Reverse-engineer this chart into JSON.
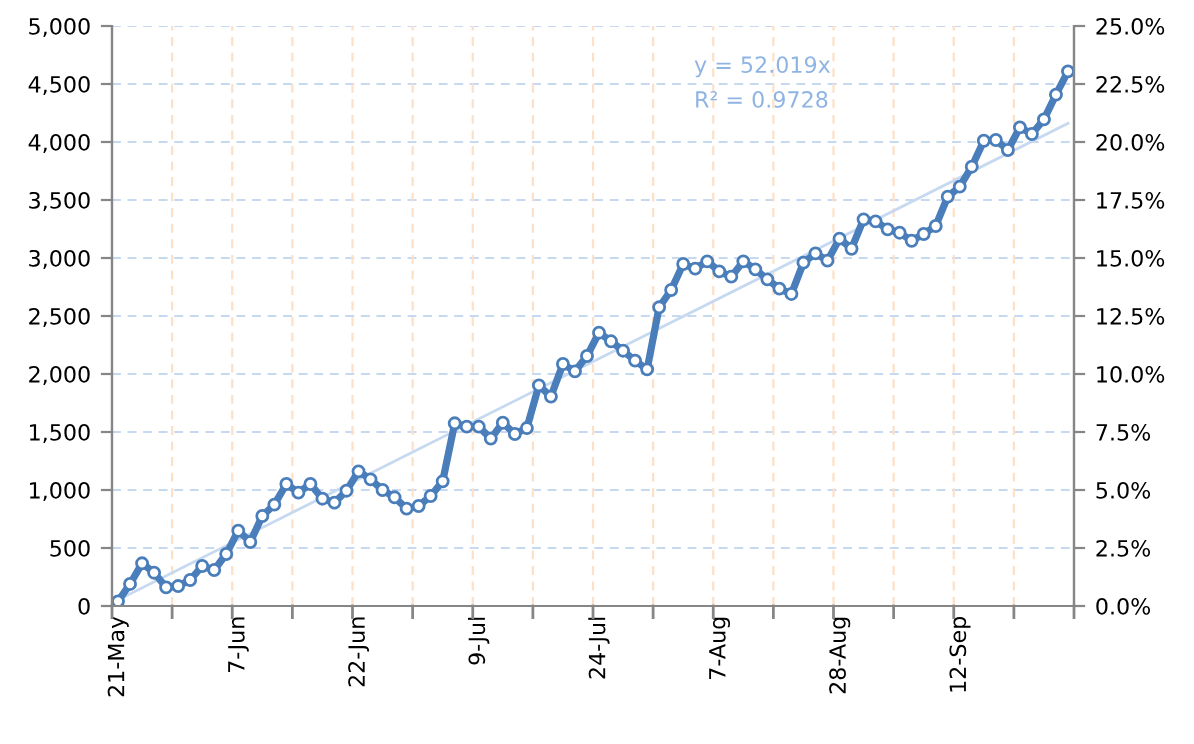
{
  "chart_data": {
    "type": "line",
    "categories": [
      "21-May",
      null,
      null,
      null,
      null,
      null,
      null,
      null,
      null,
      null,
      "7-Jun",
      null,
      null,
      null,
      null,
      null,
      null,
      null,
      null,
      null,
      "22-Jun",
      null,
      null,
      null,
      null,
      null,
      null,
      null,
      null,
      null,
      "9-Jul",
      null,
      null,
      null,
      null,
      null,
      null,
      null,
      null,
      null,
      "24-Jul",
      null,
      null,
      null,
      null,
      null,
      null,
      null,
      null,
      null,
      "7-Aug",
      null,
      null,
      null,
      null,
      null,
      null,
      null,
      null,
      null,
      "28-Aug",
      null,
      null,
      null,
      null,
      null,
      null,
      null,
      null,
      null,
      "12-Sep",
      null,
      null,
      null,
      null,
      null,
      null,
      null,
      null,
      null
    ],
    "series": [
      {
        "color": "#4a7ebb",
        "marker": "circle",
        "values": [
          40,
          190,
          368,
          287,
          161,
          172,
          224,
          345,
          310,
          448,
          649,
          552,
          776,
          874,
          1052,
          977,
          1052,
          925,
          891,
          994,
          1161,
          1092,
          1000,
          937,
          839,
          862,
          948,
          1075,
          1575,
          1546,
          1546,
          1443,
          1580,
          1483,
          1534,
          1902,
          1805,
          2086,
          2023,
          2155,
          2356,
          2282,
          2201,
          2115,
          2040,
          2575,
          2724,
          2948,
          2908,
          2971,
          2885,
          2839,
          2971,
          2902,
          2816,
          2736,
          2690,
          2960,
          3040,
          2977,
          3167,
          3080,
          3333,
          3316,
          3247,
          3218,
          3149,
          3207,
          3276,
          3529,
          3615,
          3787,
          4011,
          4017,
          3931,
          4126,
          4069,
          4195,
          4408,
          4609
        ]
      },
      {
        "color": "#c6d9f1",
        "marker": "none",
        "values": [
          52,
          null,
          null,
          null,
          null,
          null,
          null,
          null,
          null,
          null,
          null,
          null,
          null,
          null,
          null,
          null,
          null,
          null,
          null,
          null,
          null,
          null,
          null,
          null,
          null,
          null,
          null,
          null,
          null,
          null,
          null,
          null,
          null,
          null,
          null,
          null,
          null,
          null,
          null,
          null,
          null,
          null,
          null,
          null,
          null,
          null,
          null,
          null,
          null,
          null,
          null,
          null,
          null,
          null,
          null,
          null,
          null,
          null,
          null,
          null,
          null,
          null,
          null,
          null,
          null,
          null,
          null,
          null,
          null,
          null,
          null,
          null,
          null,
          null,
          null,
          null,
          null,
          null,
          null,
          4161
        ]
      }
    ],
    "ylim": [
      0,
      5000
    ],
    "yticks": [
      0,
      500,
      {
        "value": 1000,
        "label": "1,000"
      },
      {
        "value": 1500,
        "label": "1,500"
      },
      {
        "value": 2000,
        "label": "2,000"
      },
      {
        "value": 2500,
        "label": "2,500"
      },
      {
        "value": 3000,
        "label": "3,000"
      },
      {
        "value": 3500,
        "label": "3,500"
      },
      {
        "value": 4000,
        "label": "4,000"
      },
      {
        "value": 4500,
        "label": "4,500"
      },
      {
        "value": 5000,
        "label": "5,000"
      }
    ],
    "y2lim": [
      0,
      25
    ],
    "y2ticks": [
      {
        "value": 0,
        "label": "0.0%"
      },
      {
        "value": 2.5,
        "label": "2.5%"
      },
      {
        "value": 5,
        "label": "5.0%"
      },
      {
        "value": 7.5,
        "label": "7.5%"
      },
      {
        "value": 10,
        "label": "10.0%"
      },
      {
        "value": 12.5,
        "label": "12.5%"
      },
      {
        "value": 15,
        "label": "15.0%"
      },
      {
        "value": 17.5,
        "label": "17.5%"
      },
      {
        "value": 20,
        "label": "20.0%"
      },
      {
        "value": 22.5,
        "label": "22.5%"
      },
      {
        "value": 25,
        "label": "25.0%"
      }
    ],
    "annotations": [
      "y = 52.019x",
      "R² = 0.9728"
    ],
    "grid": true,
    "line_style": "solid"
  }
}
